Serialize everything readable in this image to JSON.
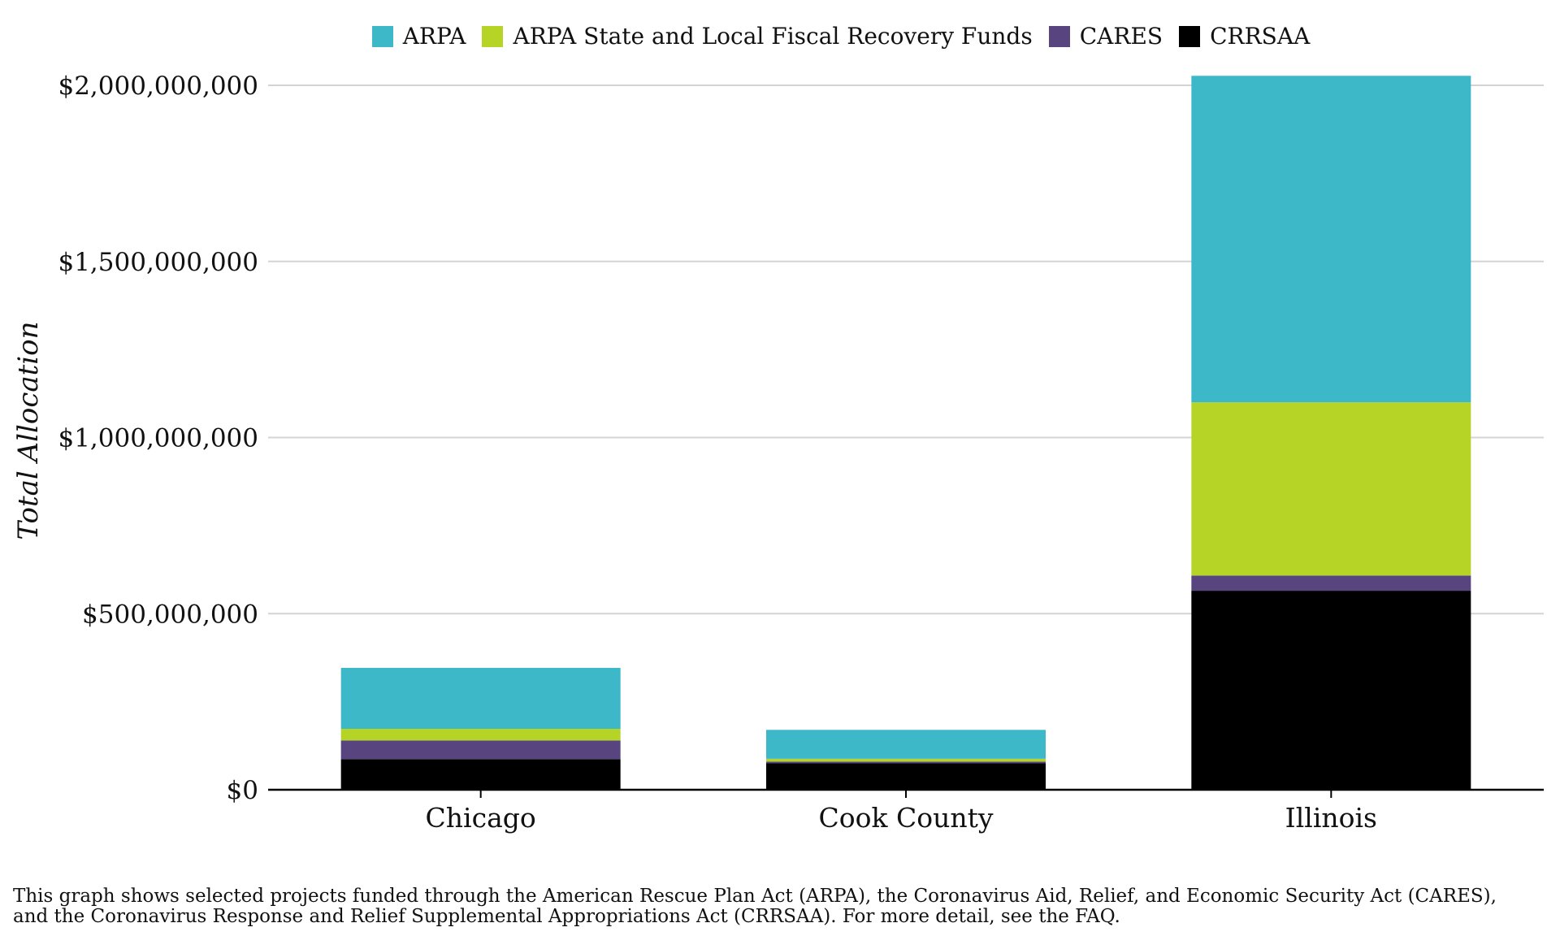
{
  "chart_data": {
    "type": "bar",
    "stacked": true,
    "categories": [
      "Chicago",
      "Cook County",
      "Illinois"
    ],
    "series": [
      {
        "name": "CRRSAA",
        "color": "#000000",
        "values": [
          87000000,
          75000000,
          565000000
        ]
      },
      {
        "name": "CARES",
        "color": "#58457f",
        "values": [
          53000000,
          5000000,
          43000000
        ]
      },
      {
        "name": "ARPA State and Local Fiscal Recovery Funds",
        "color": "#b5d426",
        "values": [
          33000000,
          8000000,
          492000000
        ]
      },
      {
        "name": "ARPA",
        "color": "#3cb8c9",
        "values": [
          173000000,
          82000000,
          927000000
        ]
      }
    ],
    "legend_order": [
      "ARPA",
      "ARPA State and Local Fiscal Recovery Funds",
      "CARES",
      "CRRSAA"
    ],
    "ylabel": "Total Allocation",
    "ylim": [
      0,
      2030000000
    ],
    "yticks": [
      0,
      500000000,
      1000000000,
      1500000000,
      2000000000
    ],
    "ytick_labels": [
      "$0",
      "$500,000,000",
      "$1,000,000,000",
      "$1,500,000,000",
      "$2,000,000,000"
    ],
    "grid": true,
    "legend_position": "top"
  },
  "caption": {
    "line1": "This graph shows selected projects funded through the American Rescue Plan Act (ARPA), the Coronavirus Aid, Relief, and Economic Security Act (CARES),",
    "line2": "and the Coronavirus Response and Relief Supplemental Appropriations Act (CRRSAA). For more detail, see the FAQ."
  }
}
